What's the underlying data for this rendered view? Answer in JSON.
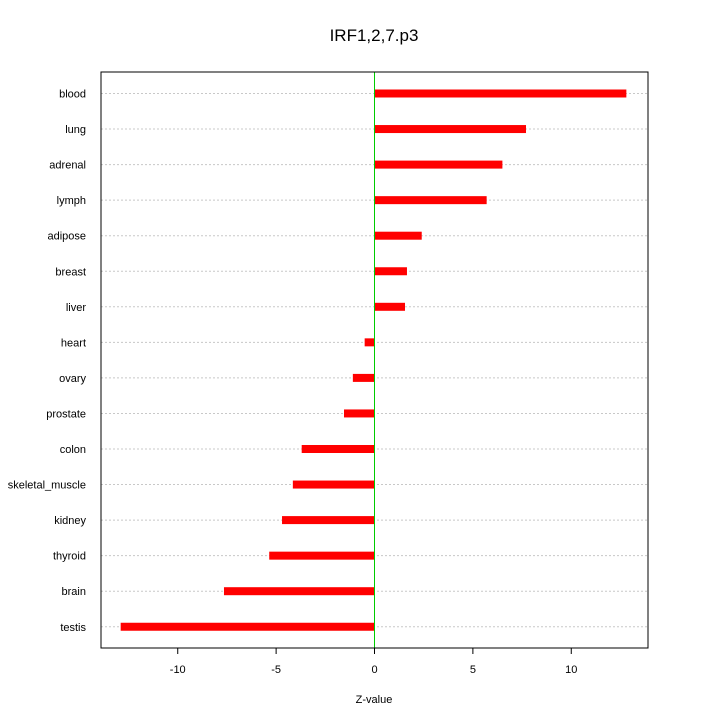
{
  "chart_data": {
    "type": "bar",
    "orientation": "horizontal",
    "title": "IRF1,2,7.p3",
    "xlabel": "Z-value",
    "ylabel": "",
    "xlim": [
      -13.9,
      13.9
    ],
    "xticks": [
      -10,
      -5,
      0,
      5,
      10
    ],
    "xtick_labels": [
      "-10",
      "-5",
      "0",
      "5",
      "10"
    ],
    "grid": "horizontal dotted",
    "legend": "none",
    "bar_color": "#ff0000",
    "zero_line_color": "#00cc00",
    "categories": [
      "blood",
      "lung",
      "adrenal",
      "lymph",
      "adipose",
      "breast",
      "liver",
      "heart",
      "ovary",
      "prostate",
      "colon",
      "skeletal_muscle",
      "kidney",
      "thyroid",
      "brain",
      "testis"
    ],
    "values": [
      12.8,
      7.7,
      6.5,
      5.7,
      2.4,
      1.65,
      1.55,
      -0.5,
      -1.1,
      -1.55,
      -3.7,
      -4.15,
      -4.7,
      -5.35,
      -7.65,
      -12.9
    ]
  }
}
